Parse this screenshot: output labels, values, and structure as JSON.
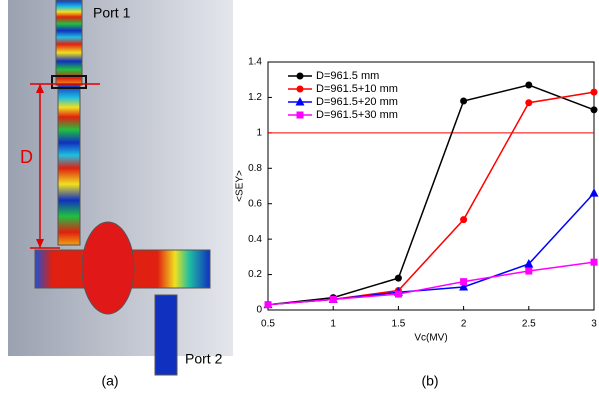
{
  "panel_a": {
    "port_top": "Port 1",
    "port_bottom": "Port 2",
    "dimension": "D",
    "caption": "(a)"
  },
  "chart_data": {
    "type": "line",
    "caption": "(b)",
    "x_label": "Vc(MV)",
    "y_label": "<SEY>",
    "x": [
      0.5,
      1,
      1.5,
      2,
      2.5,
      3
    ],
    "series": [
      {
        "name": "D=961.5 mm",
        "color": "#000000",
        "marker": "circle",
        "values": [
          0.03,
          0.07,
          0.18,
          1.18,
          1.27,
          1.13
        ]
      },
      {
        "name": "D=961.5+10 mm",
        "color": "#ff0000",
        "marker": "circle",
        "values": [
          0.03,
          0.06,
          0.11,
          0.51,
          1.17,
          1.23
        ]
      },
      {
        "name": "D=961.5+20 mm",
        "color": "#0000ff",
        "marker": "triangle",
        "values": [
          0.03,
          0.06,
          0.1,
          0.13,
          0.26,
          0.66
        ]
      },
      {
        "name": "D=961.5+30 mm",
        "color": "#ff00ff",
        "marker": "square",
        "values": [
          0.03,
          0.06,
          0.09,
          0.16,
          0.22,
          0.27
        ]
      }
    ],
    "reference_line": {
      "value": 1,
      "color": "#ff0000"
    },
    "xlim": [
      0.5,
      3
    ],
    "xticks": [
      0.5,
      1,
      1.5,
      2,
      2.5,
      3
    ],
    "ylim": [
      0,
      1.4
    ],
    "yticks": [
      0,
      0.2,
      0.4,
      0.6,
      0.8,
      1,
      1.2,
      1.4
    ],
    "grid": false,
    "legend": "upper-left"
  }
}
